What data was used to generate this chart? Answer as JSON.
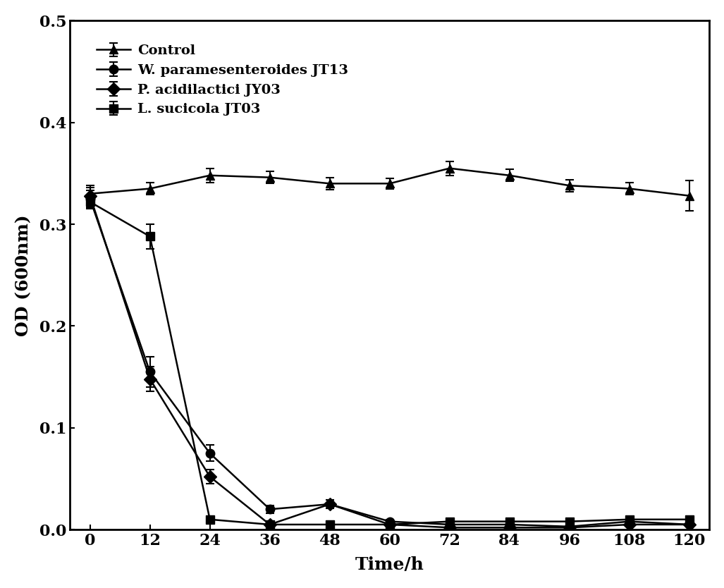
{
  "time": [
    0,
    12,
    24,
    36,
    48,
    60,
    72,
    84,
    96,
    108,
    120
  ],
  "control": {
    "y": [
      0.33,
      0.335,
      0.348,
      0.346,
      0.34,
      0.34,
      0.355,
      0.348,
      0.338,
      0.335,
      0.328
    ],
    "yerr": [
      0.008,
      0.006,
      0.007,
      0.006,
      0.006,
      0.005,
      0.007,
      0.006,
      0.006,
      0.006,
      0.015
    ],
    "label": "Control",
    "marker": "^",
    "color": "#000000"
  },
  "w_para": {
    "y": [
      0.325,
      0.155,
      0.075,
      0.02,
      0.025,
      0.008,
      0.005,
      0.005,
      0.003,
      0.008,
      0.005
    ],
    "yerr": [
      0.008,
      0.015,
      0.008,
      0.004,
      0.004,
      0.002,
      0.002,
      0.002,
      0.002,
      0.002,
      0.002
    ],
    "label": "W. paramesenteroides JT13",
    "marker": "o",
    "color": "#000000"
  },
  "p_acid": {
    "y": [
      0.328,
      0.148,
      0.052,
      0.005,
      0.025,
      0.005,
      0.002,
      0.002,
      0.002,
      0.005,
      0.005
    ],
    "yerr": [
      0.008,
      0.012,
      0.007,
      0.003,
      0.004,
      0.002,
      0.001,
      0.001,
      0.001,
      0.002,
      0.002
    ],
    "label": "P. acidilactici JY03",
    "marker": "D",
    "color": "#000000"
  },
  "l_suci": {
    "y": [
      0.322,
      0.288,
      0.01,
      0.005,
      0.005,
      0.005,
      0.008,
      0.008,
      0.008,
      0.01,
      0.01
    ],
    "yerr": [
      0.007,
      0.012,
      0.003,
      0.002,
      0.002,
      0.002,
      0.002,
      0.002,
      0.002,
      0.002,
      0.003
    ],
    "label": "L. sucicola JT03",
    "marker": "s",
    "color": "#000000"
  },
  "xlabel": "Time/h",
  "ylabel": "OD (600nm)",
  "xlim": [
    -4,
    124
  ],
  "ylim": [
    0,
    0.5
  ],
  "yticks": [
    0.0,
    0.1,
    0.2,
    0.3,
    0.4,
    0.5
  ],
  "xticks": [
    0,
    12,
    24,
    36,
    48,
    60,
    72,
    84,
    96,
    108,
    120
  ],
  "background_color": "#ffffff",
  "figsize": [
    10.27,
    8.34
  ],
  "dpi": 100
}
